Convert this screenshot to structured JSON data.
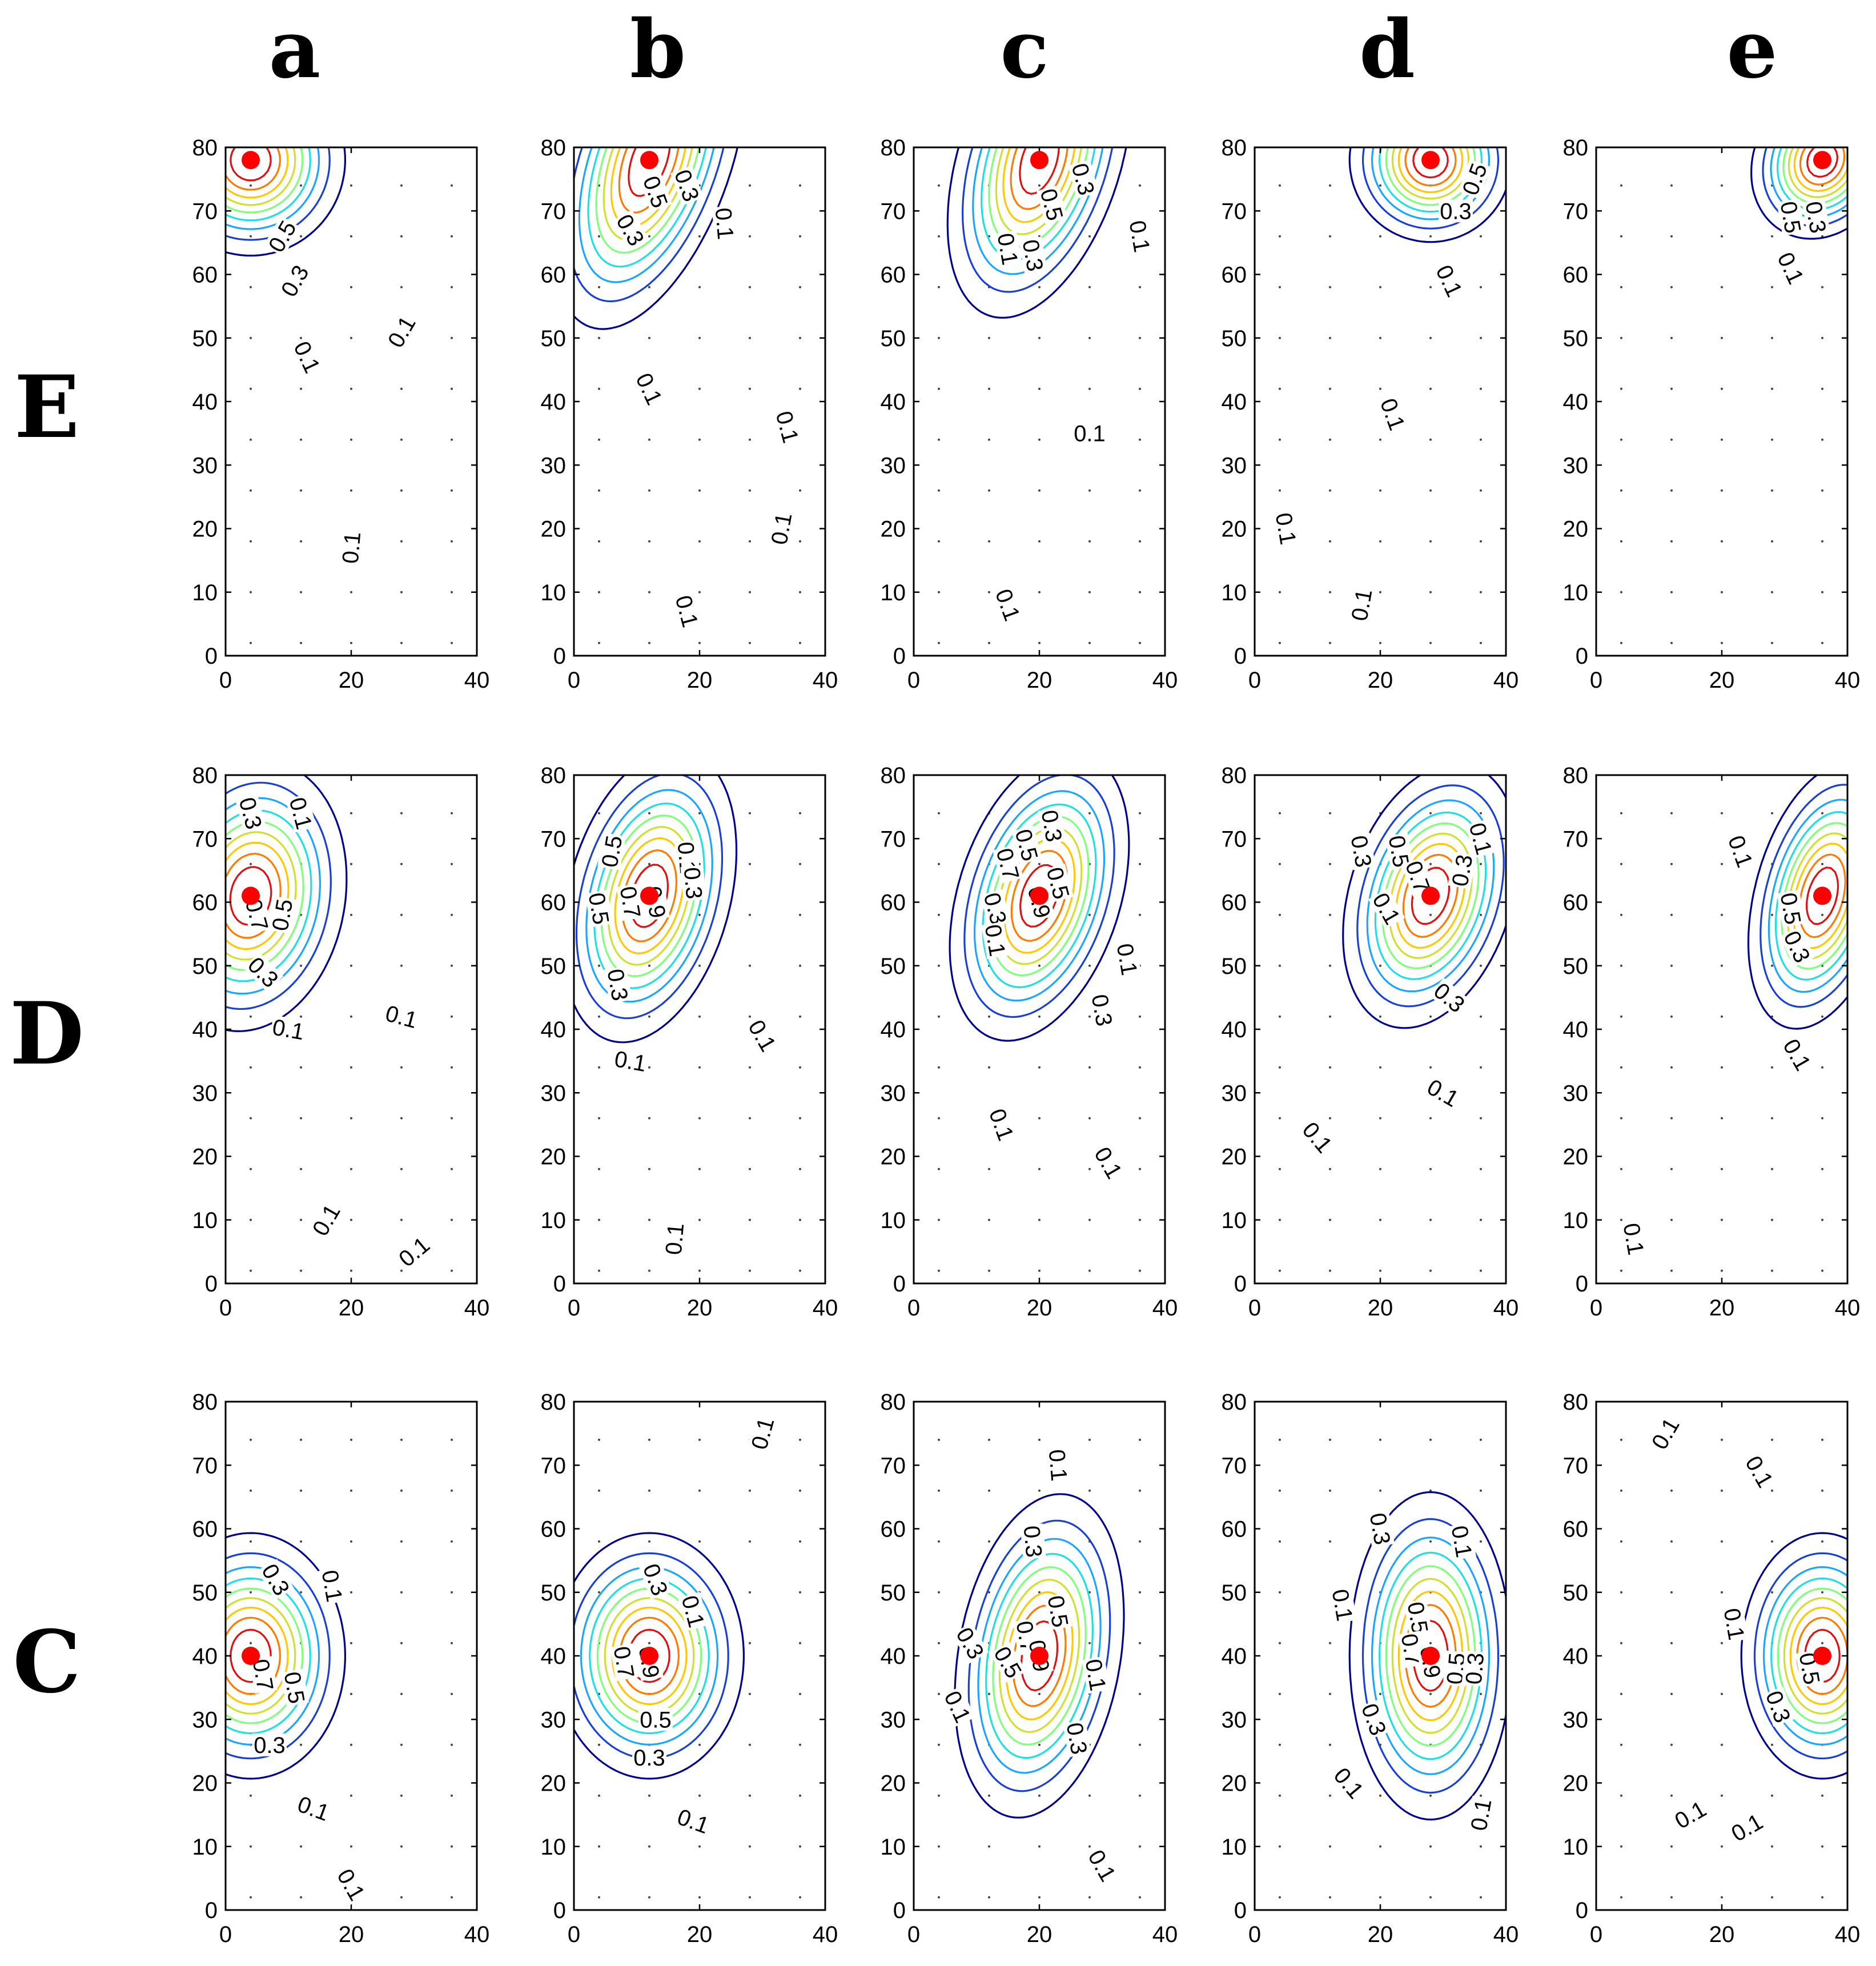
{
  "chart_data": {
    "type": "contour",
    "title": "",
    "columns": [
      "a",
      "b",
      "c",
      "d",
      "e"
    ],
    "rows": [
      "E",
      "D",
      "C"
    ],
    "xlim": [
      0,
      40
    ],
    "ylim": [
      0,
      80
    ],
    "xticks": [
      0,
      20,
      40
    ],
    "yticks": [
      0,
      10,
      20,
      30,
      40,
      50,
      60,
      70,
      80
    ],
    "grid_x": [
      4,
      12,
      20,
      28,
      36
    ],
    "grid_y": [
      2,
      10,
      18,
      26,
      34,
      42,
      50,
      58,
      66,
      74
    ],
    "contour_levels": [
      0.1,
      0.2,
      0.3,
      0.4,
      0.5,
      0.6,
      0.7,
      0.8,
      0.9
    ],
    "level_colors": [
      "#00008f",
      "#1a3fd6",
      "#1aa6ff",
      "#1fe0e0",
      "#7fff7a",
      "#d0e030",
      "#ffc800",
      "#ff7a00",
      "#e01010"
    ],
    "source_marker_color": "#ff0000",
    "panels": [
      {
        "row": "E",
        "col": "a",
        "source": [
          4,
          78
        ],
        "sigma": [
          7,
          7
        ],
        "theta": -25,
        "labels": [
          {
            "text": "0.5",
            "x": 9,
            "y": 66,
            "rot": -60
          },
          {
            "text": "0.3",
            "x": 11,
            "y": 59,
            "rot": -60
          },
          {
            "text": "0.1",
            "x": 28,
            "y": 51,
            "rot": -60
          },
          {
            "text": "0.1",
            "x": 13,
            "y": 47,
            "rot": 65
          },
          {
            "text": "0.1",
            "x": 20,
            "y": 17,
            "rot": -85
          }
        ]
      },
      {
        "row": "E",
        "col": "b",
        "source": [
          12,
          78
        ],
        "sigma": [
          6,
          13
        ],
        "theta": -20,
        "labels": [
          {
            "text": "0.3",
            "x": 18,
            "y": 74,
            "rot": 70
          },
          {
            "text": "0.5",
            "x": 13,
            "y": 73,
            "rot": 70
          },
          {
            "text": "0.3",
            "x": 9,
            "y": 67,
            "rot": 60
          },
          {
            "text": "0.1",
            "x": 24,
            "y": 68,
            "rot": 85
          },
          {
            "text": "0.1",
            "x": 12,
            "y": 42,
            "rot": 65
          },
          {
            "text": "0.1",
            "x": 34,
            "y": 36,
            "rot": 75
          },
          {
            "text": "0.1",
            "x": 33,
            "y": 20,
            "rot": -80
          },
          {
            "text": "0.1",
            "x": 18,
            "y": 7,
            "rot": 75
          }
        ]
      },
      {
        "row": "E",
        "col": "c",
        "source": [
          20,
          78
        ],
        "sigma": [
          6,
          12
        ],
        "theta": -18,
        "labels": [
          {
            "text": "0.3",
            "x": 27,
            "y": 75,
            "rot": 75
          },
          {
            "text": "0.5",
            "x": 22,
            "y": 71,
            "rot": 75
          },
          {
            "text": "0.1",
            "x": 15,
            "y": 64,
            "rot": 80
          },
          {
            "text": "0.3",
            "x": 19,
            "y": 63,
            "rot": 80
          },
          {
            "text": "0.1",
            "x": 36,
            "y": 66,
            "rot": 80
          },
          {
            "text": "0.1",
            "x": 28,
            "y": 35,
            "rot": 0
          },
          {
            "text": "0.1",
            "x": 15,
            "y": 8,
            "rot": 70
          }
        ]
      },
      {
        "row": "E",
        "col": "d",
        "source": [
          28,
          78
        ],
        "sigma": [
          6,
          6
        ],
        "theta": -30,
        "labels": [
          {
            "text": "0.5",
            "x": 35,
            "y": 75,
            "rot": -70
          },
          {
            "text": "0.3",
            "x": 32,
            "y": 70,
            "rot": 0
          },
          {
            "text": "0.1",
            "x": 31,
            "y": 59,
            "rot": 65
          },
          {
            "text": "0.1",
            "x": 22,
            "y": 38,
            "rot": 70
          },
          {
            "text": "0.1",
            "x": 5,
            "y": 20,
            "rot": 80
          },
          {
            "text": "0.1",
            "x": 17,
            "y": 8,
            "rot": -80
          }
        ]
      },
      {
        "row": "E",
        "col": "e",
        "source": [
          36,
          78
        ],
        "sigma": [
          5,
          6
        ],
        "theta": -30,
        "labels": [
          {
            "text": "0.5",
            "x": 31,
            "y": 69,
            "rot": 80
          },
          {
            "text": "0.3",
            "x": 35,
            "y": 69,
            "rot": 80
          },
          {
            "text": "0.1",
            "x": 31,
            "y": 61,
            "rot": 65
          }
        ]
      },
      {
        "row": "D",
        "col": "a",
        "source": [
          4,
          61
        ],
        "sigma": [
          7,
          10
        ],
        "theta": -10,
        "labels": [
          {
            "text": "0.3",
            "x": 4,
            "y": 74,
            "rot": 75
          },
          {
            "text": "0.1",
            "x": 12,
            "y": 74,
            "rot": 75
          },
          {
            "text": "0.7",
            "x": 5,
            "y": 58,
            "rot": 75
          },
          {
            "text": "0.5",
            "x": 9,
            "y": 58,
            "rot": -80
          },
          {
            "text": "0.3",
            "x": 6,
            "y": 49,
            "rot": 45
          },
          {
            "text": "0.1",
            "x": 10,
            "y": 40,
            "rot": 10
          },
          {
            "text": "0.1",
            "x": 28,
            "y": 42,
            "rot": 15
          },
          {
            "text": "0.1",
            "x": 16,
            "y": 10,
            "rot": -60
          },
          {
            "text": "0.1",
            "x": 30,
            "y": 5,
            "rot": -40
          }
        ]
      },
      {
        "row": "D",
        "col": "b",
        "source": [
          12,
          61
        ],
        "sigma": [
          6,
          11
        ],
        "theta": -15,
        "labels": [
          {
            "text": "0.5",
            "x": 6,
            "y": 68,
            "rot": -80
          },
          {
            "text": "0.1",
            "x": 18,
            "y": 67,
            "rot": 85
          },
          {
            "text": "0.3",
            "x": 19,
            "y": 63,
            "rot": 85
          },
          {
            "text": "0.9",
            "x": 13,
            "y": 60,
            "rot": 80
          },
          {
            "text": "0.7",
            "x": 9,
            "y": 60,
            "rot": 80
          },
          {
            "text": "0.5",
            "x": 4,
            "y": 59,
            "rot": 80
          },
          {
            "text": "0.3",
            "x": 7,
            "y": 47,
            "rot": 80
          },
          {
            "text": "0.1",
            "x": 30,
            "y": 39,
            "rot": 60
          },
          {
            "text": "0.1",
            "x": 9,
            "y": 35,
            "rot": 10
          },
          {
            "text": "0.1",
            "x": 16,
            "y": 7,
            "rot": -85
          }
        ]
      },
      {
        "row": "D",
        "col": "c",
        "source": [
          20,
          61
        ],
        "sigma": [
          6,
          11
        ],
        "theta": -18,
        "labels": [
          {
            "text": "0.3",
            "x": 22,
            "y": 72,
            "rot": 80
          },
          {
            "text": "0.5",
            "x": 18,
            "y": 69,
            "rot": 75
          },
          {
            "text": "0.7",
            "x": 15,
            "y": 66,
            "rot": 75
          },
          {
            "text": "0.5",
            "x": 23,
            "y": 63,
            "rot": 75
          },
          {
            "text": "0.9",
            "x": 20,
            "y": 60,
            "rot": 75
          },
          {
            "text": "0.3",
            "x": 13,
            "y": 59,
            "rot": 75
          },
          {
            "text": "0.1",
            "x": 13,
            "y": 54,
            "rot": 80
          },
          {
            "text": "0.1",
            "x": 34,
            "y": 51,
            "rot": 80
          },
          {
            "text": "0.3",
            "x": 30,
            "y": 43,
            "rot": 80
          },
          {
            "text": "0.1",
            "x": 14,
            "y": 25,
            "rot": 70
          },
          {
            "text": "0.1",
            "x": 31,
            "y": 19,
            "rot": 60
          }
        ]
      },
      {
        "row": "D",
        "col": "d",
        "source": [
          28,
          61
        ],
        "sigma": [
          6,
          10
        ],
        "theta": -18,
        "labels": [
          {
            "text": "0.1",
            "x": 36,
            "y": 70,
            "rot": 75
          },
          {
            "text": "0.3",
            "x": 17,
            "y": 68,
            "rot": 80
          },
          {
            "text": "0.5",
            "x": 23,
            "y": 68,
            "rot": 80
          },
          {
            "text": "0.3",
            "x": 33,
            "y": 65,
            "rot": -80
          },
          {
            "text": "0.7",
            "x": 26,
            "y": 64,
            "rot": 70
          },
          {
            "text": "0.1",
            "x": 21,
            "y": 59,
            "rot": 60
          },
          {
            "text": "0.3",
            "x": 31,
            "y": 45,
            "rot": 40
          },
          {
            "text": "0.1",
            "x": 30,
            "y": 30,
            "rot": 30
          },
          {
            "text": "0.1",
            "x": 10,
            "y": 23,
            "rot": 50
          }
        ]
      },
      {
        "row": "D",
        "col": "e",
        "source": [
          36,
          61
        ],
        "sigma": [
          5,
          10
        ],
        "theta": -15,
        "labels": [
          {
            "text": "0.1",
            "x": 23,
            "y": 68,
            "rot": 70
          },
          {
            "text": "0.5",
            "x": 31,
            "y": 59,
            "rot": 80
          },
          {
            "text": "0.3",
            "x": 32,
            "y": 53,
            "rot": 65
          },
          {
            "text": "0.1",
            "x": 32,
            "y": 36,
            "rot": 60
          },
          {
            "text": "0.1",
            "x": 6,
            "y": 7,
            "rot": 80
          }
        ]
      },
      {
        "row": "C",
        "col": "a",
        "source": [
          4,
          40
        ],
        "sigma": [
          7,
          9
        ],
        "theta": 0,
        "labels": [
          {
            "text": "0.3",
            "x": 8,
            "y": 52,
            "rot": 60
          },
          {
            "text": "0.1",
            "x": 17,
            "y": 51,
            "rot": 80
          },
          {
            "text": "0.7",
            "x": 6,
            "y": 37,
            "rot": 80
          },
          {
            "text": "0.5",
            "x": 11,
            "y": 35,
            "rot": 80
          },
          {
            "text": "0.3",
            "x": 7,
            "y": 26,
            "rot": 0
          },
          {
            "text": "0.1",
            "x": 14,
            "y": 16,
            "rot": 20
          },
          {
            "text": "0.1",
            "x": 20,
            "y": 4,
            "rot": 60
          }
        ]
      },
      {
        "row": "C",
        "col": "b",
        "source": [
          12,
          40
        ],
        "sigma": [
          7,
          9
        ],
        "theta": 0,
        "labels": [
          {
            "text": "0.1",
            "x": 30,
            "y": 75,
            "rot": -75
          },
          {
            "text": "0.3",
            "x": 13,
            "y": 52,
            "rot": 70
          },
          {
            "text": "0.1",
            "x": 19,
            "y": 47,
            "rot": 75
          },
          {
            "text": "0.7",
            "x": 8,
            "y": 39,
            "rot": 80
          },
          {
            "text": "0.9",
            "x": 12,
            "y": 39,
            "rot": 80
          },
          {
            "text": "0.5",
            "x": 13,
            "y": 30,
            "rot": 0
          },
          {
            "text": "0.3",
            "x": 12,
            "y": 24,
            "rot": 0
          },
          {
            "text": "0.1",
            "x": 19,
            "y": 14,
            "rot": 20
          }
        ]
      },
      {
        "row": "C",
        "col": "c",
        "source": [
          20,
          40
        ],
        "sigma": [
          6,
          12
        ],
        "theta": -10,
        "labels": [
          {
            "text": "0.1",
            "x": 23,
            "y": 70,
            "rot": 85
          },
          {
            "text": "0.3",
            "x": 19,
            "y": 58,
            "rot": 85
          },
          {
            "text": "0.3",
            "x": 9,
            "y": 42,
            "rot": 60
          },
          {
            "text": "0.5",
            "x": 23,
            "y": 47,
            "rot": 80
          },
          {
            "text": "0.7",
            "x": 18,
            "y": 43,
            "rot": 80
          },
          {
            "text": "0.5",
            "x": 15,
            "y": 39,
            "rot": 60
          },
          {
            "text": "0.9",
            "x": 20,
            "y": 40,
            "rot": 80
          },
          {
            "text": "0.1",
            "x": 29,
            "y": 37,
            "rot": 80
          },
          {
            "text": "0.1",
            "x": 7,
            "y": 32,
            "rot": 65
          },
          {
            "text": "0.3",
            "x": 26,
            "y": 27,
            "rot": 80
          },
          {
            "text": "0.1",
            "x": 30,
            "y": 7,
            "rot": 60
          }
        ]
      },
      {
        "row": "C",
        "col": "d",
        "source": [
          28,
          40
        ],
        "sigma": [
          6,
          12
        ],
        "theta": 0,
        "labels": [
          {
            "text": "0.3",
            "x": 20,
            "y": 60,
            "rot": 80
          },
          {
            "text": "0.1",
            "x": 33,
            "y": 58,
            "rot": 80
          },
          {
            "text": "0.1",
            "x": 14,
            "y": 48,
            "rot": 80
          },
          {
            "text": "0.5",
            "x": 26,
            "y": 46,
            "rot": 80
          },
          {
            "text": "0.7",
            "x": 25,
            "y": 41,
            "rot": 80
          },
          {
            "text": "0.9",
            "x": 28,
            "y": 39,
            "rot": 80
          },
          {
            "text": "0.5",
            "x": 32,
            "y": 38,
            "rot": -85
          },
          {
            "text": "0.3",
            "x": 35,
            "y": 38,
            "rot": -85
          },
          {
            "text": "0.3",
            "x": 19,
            "y": 30,
            "rot": 70
          },
          {
            "text": "0.1",
            "x": 15,
            "y": 20,
            "rot": 50
          },
          {
            "text": "0.1",
            "x": 36,
            "y": 15,
            "rot": -80
          }
        ]
      },
      {
        "row": "C",
        "col": "e",
        "source": [
          36,
          40
        ],
        "sigma": [
          6,
          9
        ],
        "theta": 0,
        "labels": [
          {
            "text": "0.1",
            "x": 11,
            "y": 75,
            "rot": -60
          },
          {
            "text": "0.1",
            "x": 26,
            "y": 69,
            "rot": 60
          },
          {
            "text": "0.1",
            "x": 22,
            "y": 45,
            "rot": 80
          },
          {
            "text": "0.5",
            "x": 34,
            "y": 38,
            "rot": 80
          },
          {
            "text": "0.3",
            "x": 29,
            "y": 32,
            "rot": 70
          },
          {
            "text": "0.1",
            "x": 15,
            "y": 15,
            "rot": -30
          },
          {
            "text": "0.1",
            "x": 24,
            "y": 13,
            "rot": -30
          }
        ]
      }
    ]
  }
}
